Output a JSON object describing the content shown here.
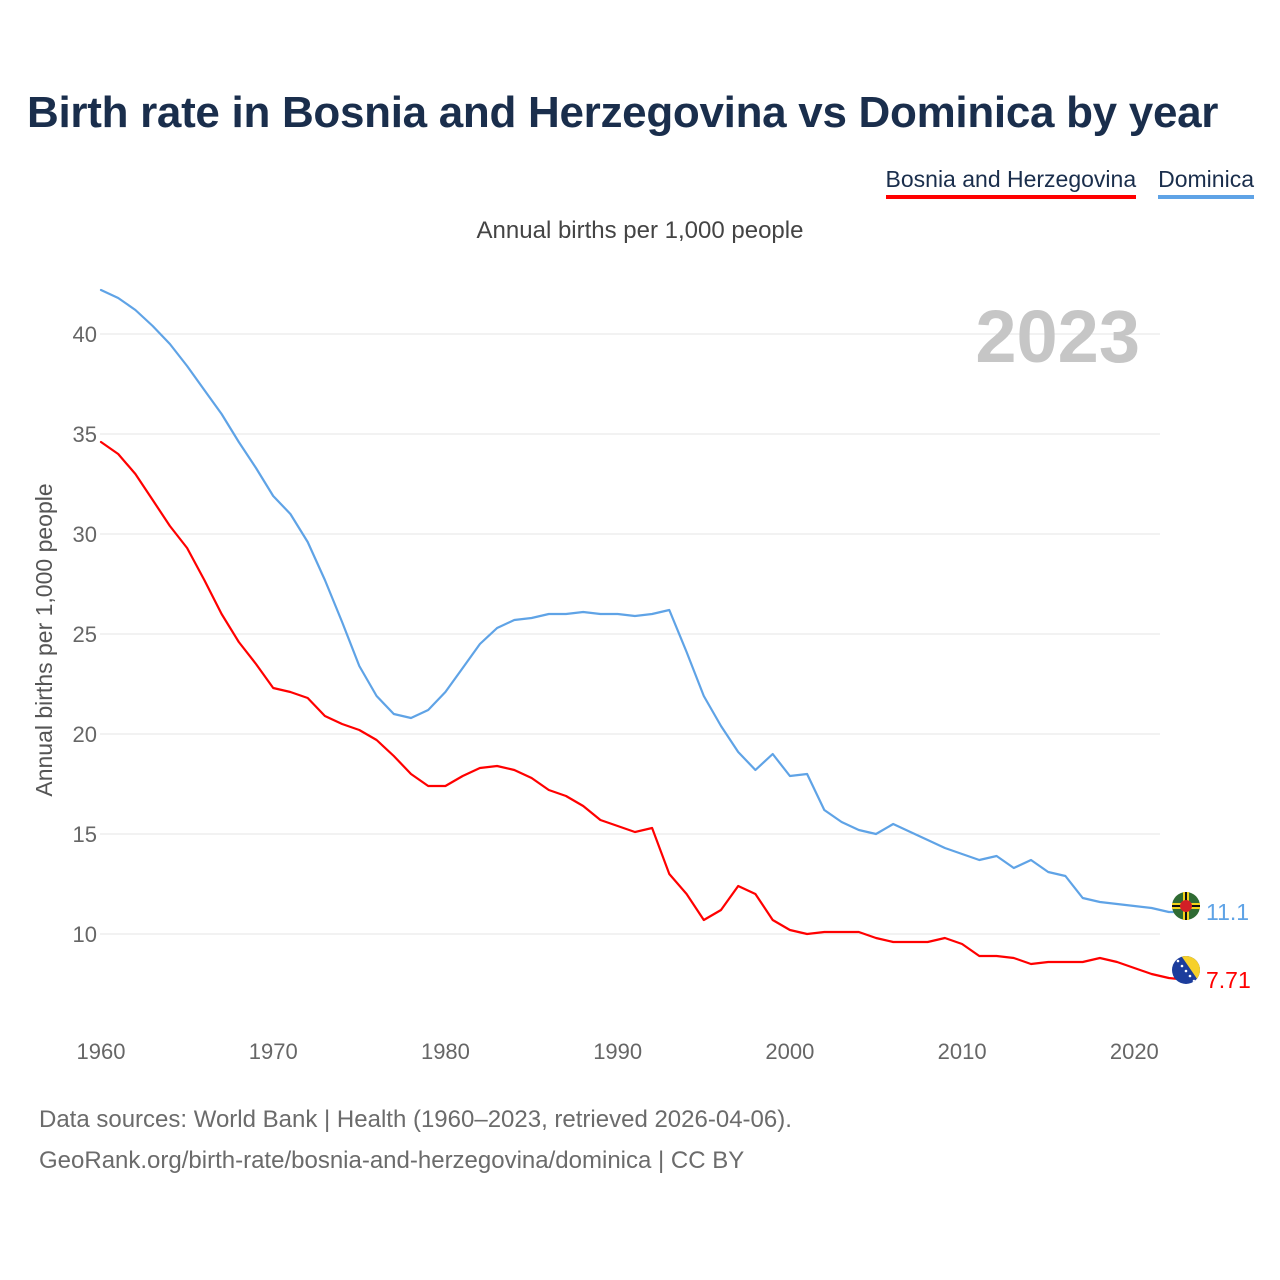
{
  "title": "Birth rate in Bosnia and Herzegovina vs Dominica by year",
  "legend": [
    {
      "label": "Bosnia and Herzegovina",
      "color": "#ff0000"
    },
    {
      "label": "Dominica",
      "color": "#5fa3e6"
    }
  ],
  "subtitle": "Annual births per 1,000 people",
  "year_watermark": "2023",
  "source_line1": "Data sources: World Bank | Health (1960–2023, retrieved 2026-04-06).",
  "source_line2": "GeoRank.org/birth-rate/bosnia-and-herzegovina/dominica | CC BY",
  "chart_data": {
    "type": "line",
    "title": "Birth rate in Bosnia and Herzegovina vs Dominica by year",
    "xlabel": "",
    "ylabel": "Annual births per 1,000 people",
    "xlim": [
      1960,
      2023
    ],
    "ylim": [
      5.5,
      43
    ],
    "x_ticks": [
      1960,
      1970,
      1980,
      1990,
      2000,
      2010,
      2020
    ],
    "y_ticks": [
      10,
      15,
      20,
      25,
      30,
      35,
      40
    ],
    "grid": true,
    "x": [
      1960,
      1961,
      1962,
      1963,
      1964,
      1965,
      1966,
      1967,
      1968,
      1969,
      1970,
      1971,
      1972,
      1973,
      1974,
      1975,
      1976,
      1977,
      1978,
      1979,
      1980,
      1981,
      1982,
      1983,
      1984,
      1985,
      1986,
      1987,
      1988,
      1989,
      1990,
      1991,
      1992,
      1993,
      1994,
      1995,
      1996,
      1997,
      1998,
      1999,
      2000,
      2001,
      2002,
      2003,
      2004,
      2005,
      2006,
      2007,
      2008,
      2009,
      2010,
      2011,
      2012,
      2013,
      2014,
      2015,
      2016,
      2017,
      2018,
      2019,
      2020,
      2021,
      2022,
      2023
    ],
    "series": [
      {
        "name": "Bosnia and Herzegovina",
        "color": "#ff0000",
        "end_label": "7.71",
        "values": [
          34.6,
          34.0,
          33.0,
          31.7,
          30.4,
          29.3,
          27.7,
          26.0,
          24.6,
          23.5,
          22.3,
          22.1,
          21.8,
          20.9,
          20.5,
          20.2,
          19.7,
          18.9,
          18.0,
          17.4,
          17.4,
          17.9,
          18.3,
          18.4,
          18.2,
          17.8,
          17.2,
          16.9,
          16.4,
          15.7,
          15.4,
          15.1,
          15.3,
          13.0,
          12.0,
          10.7,
          11.2,
          12.4,
          12.0,
          10.7,
          10.2,
          10.0,
          10.1,
          10.1,
          10.1,
          9.8,
          9.6,
          9.6,
          9.6,
          9.8,
          9.5,
          8.9,
          8.9,
          8.8,
          8.5,
          8.6,
          8.6,
          8.6,
          8.8,
          8.6,
          8.3,
          8.0,
          7.8,
          7.71
        ]
      },
      {
        "name": "Dominica",
        "color": "#5fa3e6",
        "end_label": "11.1",
        "values": [
          42.2,
          41.8,
          41.2,
          40.4,
          39.5,
          38.4,
          37.2,
          36.0,
          34.6,
          33.3,
          31.9,
          31.0,
          29.6,
          27.7,
          25.6,
          23.4,
          21.9,
          21.0,
          20.8,
          21.2,
          22.1,
          23.3,
          24.5,
          25.3,
          25.7,
          25.8,
          26.0,
          26.0,
          26.1,
          26.0,
          26.0,
          25.9,
          26.0,
          26.2,
          24.1,
          21.9,
          20.4,
          19.1,
          18.2,
          19.0,
          17.9,
          18.0,
          16.2,
          15.6,
          15.2,
          15.0,
          15.5,
          15.1,
          14.7,
          14.3,
          14.0,
          13.7,
          13.9,
          13.3,
          13.7,
          13.1,
          12.9,
          11.8,
          11.6,
          11.5,
          11.4,
          11.3,
          11.1,
          11.1
        ]
      }
    ]
  }
}
